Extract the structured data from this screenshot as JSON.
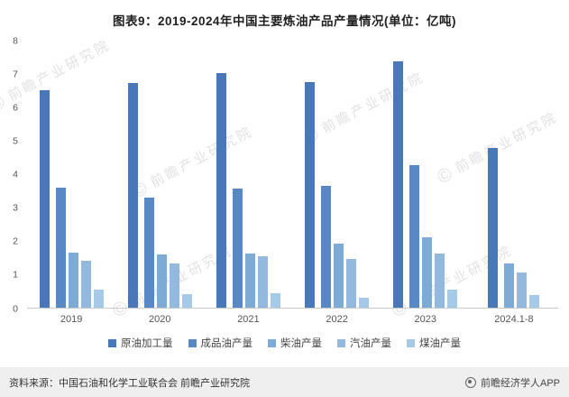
{
  "title": "图表9：2019-2024年中国主要炼油产品产量情况(单位：亿吨)",
  "chart_data": {
    "type": "bar",
    "categories": [
      "2019",
      "2020",
      "2021",
      "2022",
      "2023",
      "2024.1-8"
    ],
    "series": [
      {
        "name": "原油加工量",
        "color": "#4878b8",
        "values": [
          6.52,
          6.74,
          7.04,
          6.76,
          7.39,
          4.78
        ]
      },
      {
        "name": "成品油产量",
        "color": "#5989c5",
        "values": [
          3.6,
          3.31,
          3.57,
          3.66,
          4.28,
          null
        ]
      },
      {
        "name": "柴油产量",
        "color": "#7eaad6",
        "values": [
          1.66,
          1.59,
          1.63,
          1.91,
          2.12,
          1.33
        ]
      },
      {
        "name": "汽油产量",
        "color": "#93bade",
        "values": [
          1.41,
          1.32,
          1.54,
          1.45,
          1.61,
          1.06
        ]
      },
      {
        "name": "煤油产量",
        "color": "#a6c9e8",
        "values": [
          0.53,
          0.4,
          0.43,
          0.29,
          0.55,
          0.38
        ]
      }
    ],
    "ylim": [
      0,
      8
    ],
    "yticks": [
      0,
      1,
      2,
      3,
      4,
      5,
      6,
      7,
      8
    ],
    "grid": false,
    "legend_position": "bottom"
  },
  "watermark": {
    "copyright": "©",
    "text": "前瞻产业研究院"
  },
  "footer": {
    "source": "资料来源：中国石油和化学工业联合会 前瞻产业研究院",
    "brand": "前瞻经济学人APP"
  }
}
